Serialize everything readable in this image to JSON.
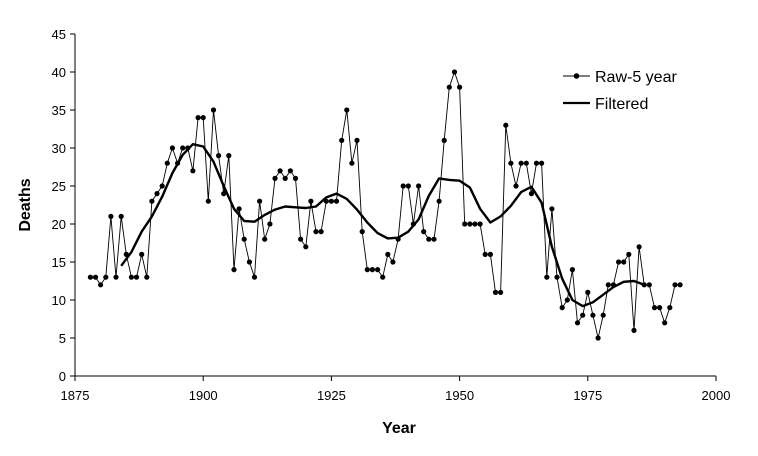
{
  "chart_data": {
    "type": "line",
    "xlabel": "Year",
    "ylabel": "Deaths",
    "xlim": [
      1875,
      2000
    ],
    "ylim": [
      0,
      45
    ],
    "x_ticks": [
      1875,
      1900,
      1925,
      1950,
      1975,
      2000
    ],
    "y_ticks": [
      0,
      5,
      10,
      15,
      20,
      25,
      30,
      35,
      40,
      45
    ],
    "grid": false,
    "legend_position": "top-right",
    "series": [
      {
        "name": "Raw-5 year",
        "style": "line-with-markers",
        "color": "#000000",
        "x": [
          1878,
          1879,
          1880,
          1881,
          1882,
          1883,
          1884,
          1885,
          1886,
          1887,
          1888,
          1889,
          1890,
          1891,
          1892,
          1893,
          1894,
          1895,
          1896,
          1897,
          1898,
          1899,
          1900,
          1901,
          1902,
          1903,
          1904,
          1905,
          1906,
          1907,
          1908,
          1909,
          1910,
          1911,
          1912,
          1913,
          1914,
          1915,
          1916,
          1917,
          1918,
          1919,
          1920,
          1921,
          1922,
          1923,
          1924,
          1925,
          1926,
          1927,
          1928,
          1929,
          1930,
          1931,
          1932,
          1933,
          1934,
          1935,
          1936,
          1937,
          1938,
          1939,
          1940,
          1941,
          1942,
          1943,
          1944,
          1945,
          1946,
          1947,
          1948,
          1949,
          1950,
          1951,
          1952,
          1953,
          1954,
          1955,
          1956,
          1957,
          1958,
          1959,
          1960,
          1961,
          1962,
          1963,
          1964,
          1965,
          1966,
          1967,
          1968,
          1969,
          1970,
          1971,
          1972,
          1973,
          1974,
          1975,
          1976,
          1977,
          1978,
          1979,
          1980,
          1981,
          1982,
          1983,
          1984,
          1985,
          1986,
          1987,
          1988,
          1989,
          1990,
          1991,
          1992,
          1993
        ],
        "values": [
          13,
          13,
          12,
          13,
          21,
          13,
          21,
          16,
          13,
          13,
          16,
          13,
          23,
          24,
          25,
          28,
          30,
          28,
          30,
          30,
          27,
          34,
          34,
          23,
          35,
          29,
          24,
          29,
          14,
          22,
          18,
          15,
          13,
          23,
          18,
          20,
          26,
          27,
          26,
          27,
          26,
          18,
          17,
          23,
          19,
          19,
          23,
          23,
          23,
          31,
          35,
          28,
          31,
          19,
          14,
          14,
          14,
          13,
          16,
          15,
          18,
          25,
          25,
          20,
          25,
          19,
          18,
          18,
          23,
          31,
          38,
          40,
          38,
          20,
          20,
          20,
          20,
          16,
          16,
          11,
          11,
          33,
          28,
          25,
          28,
          28,
          24,
          28,
          28,
          13,
          22,
          13,
          9,
          10,
          14,
          7,
          8,
          11,
          8,
          5,
          8,
          12,
          12,
          15,
          15,
          16,
          6,
          17,
          12,
          12,
          9,
          9,
          7,
          9,
          12,
          12
        ]
      },
      {
        "name": "Filtered",
        "style": "line",
        "color": "#000000",
        "x": [
          1884,
          1886,
          1888,
          1890,
          1892,
          1894,
          1896,
          1898,
          1900,
          1902,
          1904,
          1906,
          1908,
          1910,
          1912,
          1914,
          1916,
          1918,
          1920,
          1922,
          1924,
          1926,
          1928,
          1930,
          1932,
          1934,
          1936,
          1938,
          1940,
          1942,
          1944,
          1946,
          1948,
          1950,
          1952,
          1954,
          1956,
          1958,
          1960,
          1962,
          1964,
          1966,
          1968,
          1970,
          1972,
          1974,
          1976,
          1978,
          1980,
          1982,
          1984,
          1986
        ],
        "values": [
          14.5,
          16.3,
          19.0,
          21.0,
          23.6,
          26.7,
          29.1,
          30.5,
          30.2,
          28.2,
          25.0,
          22.0,
          20.4,
          20.3,
          21.2,
          21.9,
          22.3,
          22.2,
          22.1,
          22.3,
          23.5,
          24.0,
          23.3,
          21.9,
          20.2,
          18.8,
          18.1,
          18.2,
          19.0,
          20.6,
          23.7,
          26.0,
          25.8,
          25.7,
          24.8,
          22.0,
          20.2,
          21.0,
          22.4,
          24.2,
          24.9,
          22.8,
          17.0,
          12.8,
          10.0,
          9.2,
          9.7,
          10.7,
          11.7,
          12.4,
          12.5,
          12.0
        ]
      }
    ]
  }
}
